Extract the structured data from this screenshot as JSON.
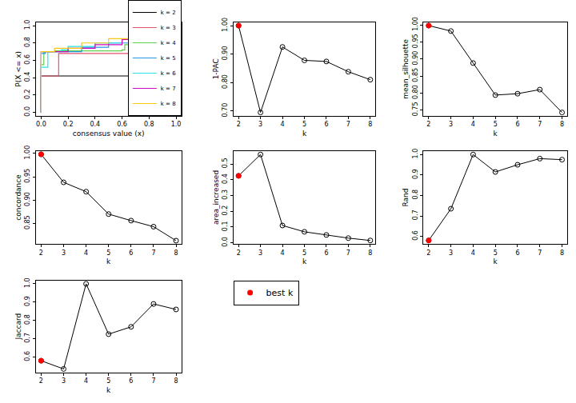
{
  "chart_data": [
    {
      "type": "line",
      "x_label": "consensus value (x)",
      "y_label": "P(X <= x)",
      "xlim": [
        -0.04,
        1.04
      ],
      "ylim": [
        -0.04,
        1.04
      ],
      "xticks": [
        {
          "value": 0,
          "label": "0.0"
        },
        0.2,
        0.4,
        0.6,
        0.8,
        {
          "value": 1,
          "label": "1.0"
        }
      ],
      "yticks": [
        {
          "value": 0,
          "label": "0.0"
        },
        0.2,
        0.4,
        0.6,
        0.8,
        {
          "value": 1,
          "label": "1.0"
        }
      ],
      "legend": "bottom right",
      "line_style": "step",
      "series": [
        {
          "name": "k = 2",
          "color": "#000000",
          "x": [
            0,
            0,
            1,
            1
          ],
          "values": [
            0,
            0.42,
            0.42,
            1.0
          ]
        },
        {
          "name": "k = 3",
          "color": "#DF536B",
          "x": [
            0,
            0,
            0.13,
            0.13,
            0.98,
            1,
            1
          ],
          "values": [
            0,
            0.42,
            0.42,
            0.68,
            0.68,
            0.7,
            1.0
          ]
        },
        {
          "name": "k = 4",
          "color": "#61D04F",
          "x": [
            0,
            0,
            0.02,
            0.1,
            0.6,
            0.62,
            0.95,
            0.97,
            1
          ],
          "values": [
            0,
            0.55,
            0.7,
            0.71,
            0.72,
            0.78,
            0.8,
            0.82,
            1.0
          ]
        },
        {
          "name": "k = 5",
          "color": "#2297E6",
          "x": [
            0,
            0,
            0.03,
            0.3,
            0.5,
            0.7,
            0.9,
            0.98,
            1
          ],
          "values": [
            0,
            0.68,
            0.7,
            0.75,
            0.8,
            0.83,
            0.88,
            0.92,
            1.0
          ]
        },
        {
          "name": "k = 6",
          "color": "#28E2E5",
          "x": [
            0,
            0,
            0.05,
            0.15,
            0.2,
            0.4,
            0.6,
            0.8,
            0.95,
            1
          ],
          "values": [
            0,
            0.52,
            0.7,
            0.72,
            0.76,
            0.8,
            0.84,
            0.87,
            0.9,
            1.0
          ]
        },
        {
          "name": "k = 7",
          "color": "#CD0BBC",
          "x": [
            0,
            0,
            0.2,
            0.4,
            0.6,
            0.8,
            0.95,
            1
          ],
          "values": [
            0,
            0.7,
            0.74,
            0.78,
            0.84,
            0.88,
            0.92,
            1.0
          ]
        },
        {
          "name": "k = 8",
          "color": "#F5C710",
          "x": [
            0,
            0,
            0.1,
            0.3,
            0.5,
            0.7,
            0.9,
            1
          ],
          "values": [
            0,
            0.7,
            0.74,
            0.8,
            0.85,
            0.89,
            0.94,
            1.0
          ]
        }
      ]
    },
    {
      "type": "line",
      "x_label": "k",
      "y_label": "1-PAC",
      "xlim": [
        1.76,
        8.24
      ],
      "ylim": [
        0.683,
        1.012
      ],
      "xticks": [
        2,
        3,
        4,
        5,
        6,
        7,
        8
      ],
      "yticks": [
        {
          "value": 0.7,
          "label": "0.70"
        },
        {
          "value": 0.8,
          "label": "0.80"
        },
        {
          "value": 0.9,
          "label": "0.90"
        },
        {
          "value": 1.0,
          "label": "1.00"
        }
      ],
      "series": [
        {
          "color": "#000000",
          "marker": "open circle",
          "x": [
            2,
            3,
            4,
            5,
            6,
            7,
            8
          ],
          "values": [
            1.0,
            0.695,
            0.925,
            0.878,
            0.874,
            0.838,
            0.81
          ]
        },
        {
          "color": "#ff0000",
          "marker": "filled circle",
          "x": [
            2
          ],
          "values": [
            1.0
          ]
        }
      ]
    },
    {
      "type": "line",
      "x_label": "k",
      "y_label": "mean_silhouette",
      "xlim": [
        1.76,
        8.24
      ],
      "ylim": [
        0.733,
        1.008
      ],
      "xticks": [
        2,
        3,
        4,
        5,
        6,
        7,
        8
      ],
      "yticks": [
        0.75,
        {
          "value": 0.8,
          "label": "0.80"
        },
        0.85,
        {
          "value": 0.9,
          "label": "0.90"
        },
        0.95,
        {
          "value": 1.0,
          "label": "1.00"
        }
      ],
      "series": [
        {
          "color": "#000000",
          "marker": "open circle",
          "x": [
            2,
            3,
            4,
            5,
            6,
            7,
            8
          ],
          "values": [
            0.998,
            0.982,
            0.888,
            0.794,
            0.798,
            0.81,
            0.743
          ]
        },
        {
          "color": "#ff0000",
          "marker": "filled circle",
          "x": [
            2
          ],
          "values": [
            0.998
          ]
        }
      ]
    },
    {
      "type": "line",
      "x_label": "k",
      "y_label": "concordance",
      "xlim": [
        1.76,
        8.24
      ],
      "ylim": [
        0.806,
        1.005
      ],
      "xticks": [
        2,
        3,
        4,
        5,
        6,
        7,
        8
      ],
      "yticks": [
        0.85,
        {
          "value": 0.9,
          "label": "0.90"
        },
        0.95,
        {
          "value": 1.0,
          "label": "1.00"
        }
      ],
      "series": [
        {
          "color": "#000000",
          "marker": "open circle",
          "x": [
            2,
            3,
            4,
            5,
            6,
            7,
            8
          ],
          "values": [
            0.998,
            0.938,
            0.918,
            0.87,
            0.856,
            0.843,
            0.813
          ]
        },
        {
          "color": "#ff0000",
          "marker": "filled circle",
          "x": [
            2
          ],
          "values": [
            0.998
          ]
        }
      ]
    },
    {
      "type": "line",
      "x_label": "k",
      "y_label": "area_increased",
      "xlim": [
        1.76,
        8.24
      ],
      "ylim": [
        -0.007,
        0.582
      ],
      "xticks": [
        2,
        3,
        4,
        5,
        6,
        7,
        8
      ],
      "yticks": [
        {
          "value": 0,
          "label": "0.0"
        },
        0.1,
        0.2,
        0.3,
        0.4,
        0.5
      ],
      "series": [
        {
          "color": "#000000",
          "marker": "open circle",
          "x": [
            2,
            3,
            4,
            5,
            6,
            7,
            8
          ],
          "values": [
            0.425,
            0.56,
            0.11,
            0.07,
            0.05,
            0.03,
            0.015
          ]
        },
        {
          "color": "#ff0000",
          "marker": "filled circle",
          "x": [
            2
          ],
          "values": [
            0.425
          ]
        }
      ]
    },
    {
      "type": "line",
      "x_label": "k",
      "y_label": "Rand",
      "xlim": [
        1.76,
        8.24
      ],
      "ylim": [
        0.563,
        1.017
      ],
      "xticks": [
        2,
        3,
        4,
        5,
        6,
        7,
        8
      ],
      "yticks": [
        0.6,
        0.7,
        0.8,
        0.9,
        {
          "value": 1.0,
          "label": "1.0"
        }
      ],
      "series": [
        {
          "color": "#000000",
          "marker": "open circle",
          "x": [
            2,
            3,
            4,
            5,
            6,
            7,
            8
          ],
          "values": [
            0.58,
            0.735,
            1.0,
            0.915,
            0.95,
            0.98,
            0.975
          ]
        },
        {
          "color": "#ff0000",
          "marker": "filled circle",
          "x": [
            2
          ],
          "values": [
            0.58
          ]
        }
      ]
    },
    {
      "type": "line",
      "x_label": "k",
      "y_label": "Jaccard",
      "xlim": [
        1.76,
        8.24
      ],
      "ylim": [
        0.516,
        1.019
      ],
      "xticks": [
        2,
        3,
        4,
        5,
        6,
        7,
        8
      ],
      "yticks": [
        0.6,
        0.7,
        0.8,
        0.9,
        {
          "value": 1.0,
          "label": "1.0"
        }
      ],
      "series": [
        {
          "color": "#000000",
          "marker": "open circle",
          "x": [
            2,
            3,
            4,
            5,
            6,
            7,
            8
          ],
          "values": [
            0.58,
            0.535,
            1.0,
            0.725,
            0.765,
            0.89,
            0.86
          ]
        },
        {
          "color": "#ff0000",
          "marker": "filled circle",
          "x": [
            2
          ],
          "values": [
            0.58
          ]
        }
      ]
    },
    {
      "type": "legend",
      "series": [
        {
          "name": "best k",
          "color": "#ff0000",
          "marker": "filled circle"
        }
      ]
    }
  ]
}
